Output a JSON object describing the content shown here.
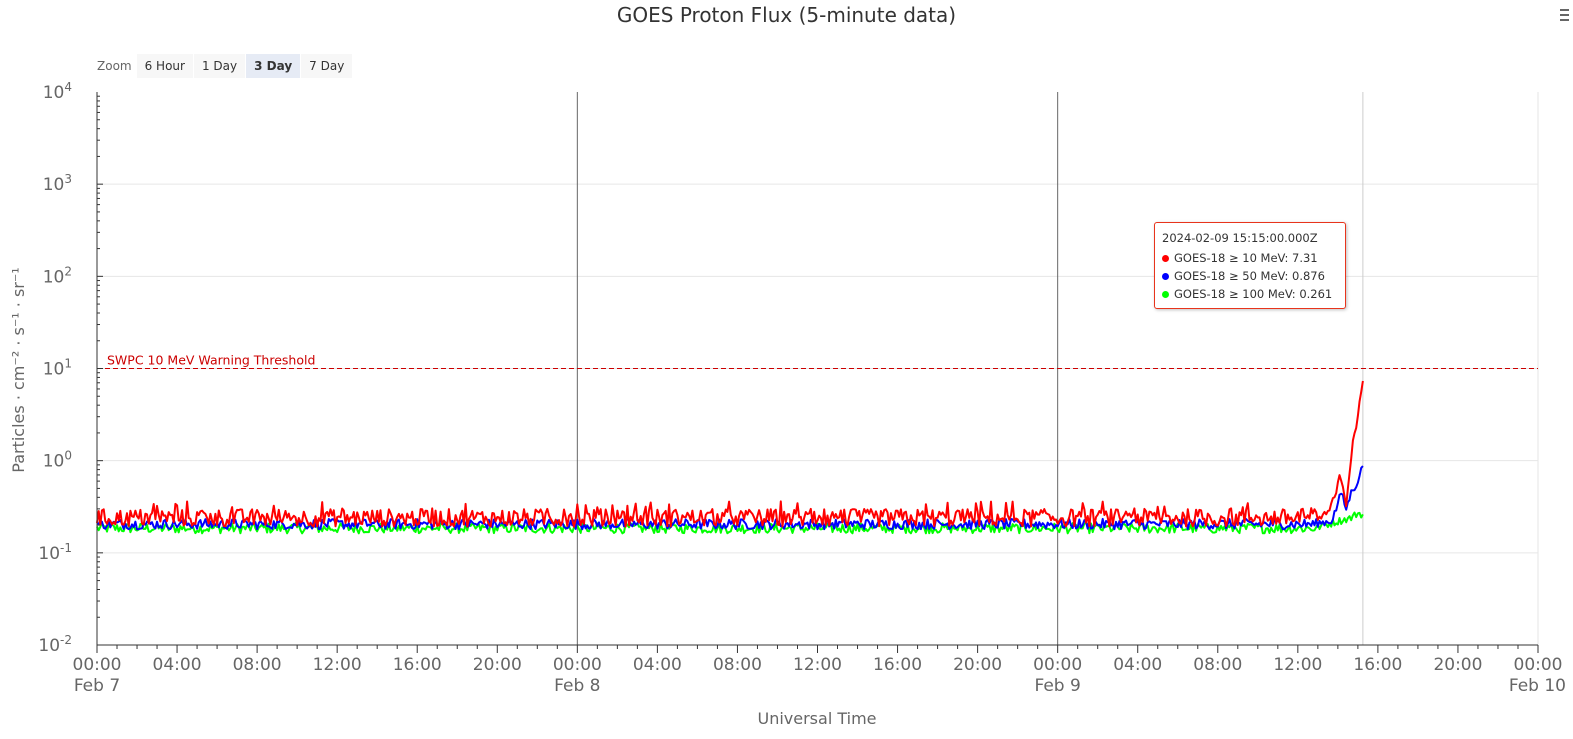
{
  "chart_title": "GOES Proton Flux (5-minute data)",
  "zoom": {
    "label": "Zoom",
    "buttons": [
      {
        "label": "6 Hour",
        "selected": false
      },
      {
        "label": "1 Day",
        "selected": false
      },
      {
        "label": "3 Day",
        "selected": true
      },
      {
        "label": "7 Day",
        "selected": false
      }
    ]
  },
  "colors": {
    "p10": "#ff0000",
    "p50": "#0000ff",
    "p100": "#00ff00",
    "threshold": "#cc0000",
    "crosshair": "#cccccc",
    "day_line": "#666666"
  },
  "chart_data": {
    "type": "line",
    "title": "GOES Proton Flux (5-minute data)",
    "xlabel": "Universal Time",
    "ylabel": "Particles · cm⁻² · s⁻¹ · sr⁻¹",
    "yscale": "log",
    "ylim": [
      0.01,
      10000
    ],
    "y_ticks": [
      {
        "base": "10",
        "exp": "4"
      },
      {
        "base": "10",
        "exp": "3"
      },
      {
        "base": "10",
        "exp": "2"
      },
      {
        "base": "10",
        "exp": "1"
      },
      {
        "base": "10",
        "exp": "0"
      },
      {
        "base": "10",
        "exp": "-1"
      },
      {
        "base": "10",
        "exp": "-2"
      }
    ],
    "xlim": [
      "2024-02-07T00:00Z",
      "2024-02-10T00:00Z"
    ],
    "x_ticks": [
      "00:00",
      "04:00",
      "08:00",
      "12:00",
      "16:00",
      "20:00",
      "00:00",
      "04:00",
      "08:00",
      "12:00",
      "16:00",
      "20:00",
      "00:00",
      "04:00",
      "08:00",
      "12:00",
      "16:00",
      "20:00",
      "00:00"
    ],
    "x_day_labels": [
      {
        "label": "Feb 7",
        "time": "2024-02-07T00:00Z"
      },
      {
        "label": "Feb 8",
        "time": "2024-02-08T00:00Z"
      },
      {
        "label": "Feb 9",
        "time": "2024-02-09T00:00Z"
      },
      {
        "label": "Feb 10",
        "time": "2024-02-10T00:00Z"
      }
    ],
    "threshold": {
      "label": "SWPC 10 MeV Warning Threshold",
      "value": 10
    },
    "grid": true,
    "series": [
      {
        "name": "GOES-18 ≥ 10 MeV",
        "color": "#ff0000",
        "baseline": 0.24,
        "points": [
          [
            "2024-02-09T13:00Z",
            0.23
          ],
          [
            "2024-02-09T13:30Z",
            0.27
          ],
          [
            "2024-02-09T13:50Z",
            0.4
          ],
          [
            "2024-02-09T14:05Z",
            0.72
          ],
          [
            "2024-02-09T14:15Z",
            0.55
          ],
          [
            "2024-02-09T14:25Z",
            0.34
          ],
          [
            "2024-02-09T14:35Z",
            0.75
          ],
          [
            "2024-02-09T14:45Z",
            1.6
          ],
          [
            "2024-02-09T14:55Z",
            2.1
          ],
          [
            "2024-02-09T15:05Z",
            4.3
          ],
          [
            "2024-02-09T15:15Z",
            7.31
          ]
        ]
      },
      {
        "name": "GOES-18 ≥ 50 MeV",
        "color": "#0000ff",
        "baseline": 0.205,
        "points": [
          [
            "2024-02-09T13:00Z",
            0.21
          ],
          [
            "2024-02-09T13:40Z",
            0.22
          ],
          [
            "2024-02-09T13:55Z",
            0.3
          ],
          [
            "2024-02-09T14:10Z",
            0.45
          ],
          [
            "2024-02-09T14:25Z",
            0.3
          ],
          [
            "2024-02-09T14:40Z",
            0.45
          ],
          [
            "2024-02-09T14:55Z",
            0.55
          ],
          [
            "2024-02-09T15:15Z",
            0.876
          ]
        ]
      },
      {
        "name": "GOES-18 ≥ 100 MeV",
        "color": "#00ff00",
        "baseline": 0.185,
        "points": [
          [
            "2024-02-09T13:00Z",
            0.19
          ],
          [
            "2024-02-09T14:00Z",
            0.22
          ],
          [
            "2024-02-09T14:40Z",
            0.24
          ],
          [
            "2024-02-09T15:00Z",
            0.27
          ],
          [
            "2024-02-09T15:15Z",
            0.261
          ]
        ]
      }
    ]
  },
  "tooltip": {
    "time": "2024-02-09 15:15:00.000Z",
    "rows": [
      {
        "label": "GOES-18 ≥ 10 MeV",
        "value": "7.31",
        "color": "#ff0000"
      },
      {
        "label": "GOES-18 ≥ 50 MeV",
        "value": "0.876",
        "color": "#0000ff"
      },
      {
        "label": "GOES-18 ≥ 100 MeV",
        "value": "0.261",
        "color": "#00ff00"
      }
    ]
  }
}
